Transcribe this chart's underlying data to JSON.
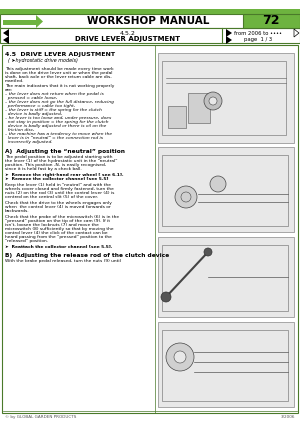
{
  "title": "WORKSHOP MANUAL",
  "page_num": "72",
  "section": "4.5.2",
  "section_title": "DRIVE LEVER ADJUSTMENT",
  "from_year": "from 2006 to ••••",
  "page_info": "page  1 / 3",
  "section_heading": "4.5  DRIVE LEVER ADJUSTMENT",
  "section_sub": "( ➤hydrostatic drive models)",
  "section_a_title": "A)  Adjusting the “neutral” position",
  "section_b_title": "B)  Adjusting the release rod of the clutch device",
  "footer_left": "© by GLOBAL GARDEN PRODUCTS",
  "footer_right": "3/2006",
  "bg_color": "#ffffff",
  "header_green": "#6db33f",
  "border_color": "#4a7a2a",
  "text_color": "#000000"
}
